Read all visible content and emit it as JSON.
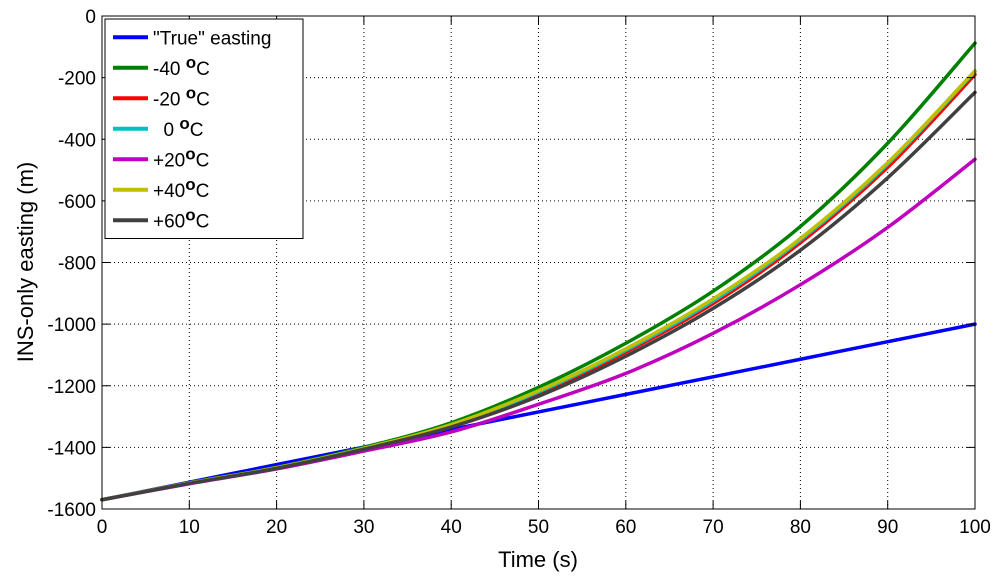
{
  "chart_data": {
    "type": "line",
    "title": "",
    "xlabel": "Time (s)",
    "ylabel": "INS-only easting (m)",
    "xlim": [
      0,
      100
    ],
    "ylim": [
      -1600,
      0
    ],
    "xticks": [
      0,
      10,
      20,
      30,
      40,
      50,
      60,
      70,
      80,
      90,
      100
    ],
    "yticks": [
      0,
      -200,
      -400,
      -600,
      -800,
      -1000,
      -1200,
      -1400,
      -1600
    ],
    "grid": true,
    "legend_position": "top-left",
    "x": [
      0,
      10,
      20,
      30,
      40,
      50,
      60,
      70,
      80,
      90,
      100
    ],
    "series": [
      {
        "name": "\"True\" easting",
        "label": "\"True\" easting",
        "sup": "",
        "unit": "",
        "color": "#0000ff",
        "values": [
          -1570,
          -1513,
          -1456,
          -1399,
          -1342,
          -1285,
          -1228,
          -1171,
          -1114,
          -1057,
          -1000
        ]
      },
      {
        "name": "-40 oC",
        "label": "-40 ",
        "sup": "o",
        "unit": "C",
        "color": "#008000",
        "values": [
          -1570,
          -1515,
          -1465,
          -1400,
          -1320,
          -1205,
          -1062,
          -893,
          -683,
          -413,
          -88
        ]
      },
      {
        "name": "-20 oC",
        "label": "-20 ",
        "sup": "o",
        "unit": "C",
        "color": "#ff0000",
        "values": [
          -1570,
          -1516,
          -1467,
          -1404,
          -1330,
          -1225,
          -1091,
          -933,
          -736,
          -491,
          -190
        ]
      },
      {
        "name": "0 oC",
        "label": "  0 ",
        "sup": "o",
        "unit": "C",
        "color": "#00c0c0",
        "values": [
          -1570,
          -1516,
          -1466,
          -1403,
          -1328,
          -1220,
          -1085,
          -925,
          -727,
          -481,
          -180
        ]
      },
      {
        "name": "+20oC",
        "label": "+20",
        "sup": "o",
        "unit": "C",
        "color": "#bf00bf",
        "values": [
          -1570,
          -1518,
          -1470,
          -1412,
          -1350,
          -1260,
          -1160,
          -1030,
          -872,
          -686,
          -465
        ]
      },
      {
        "name": "+40oC",
        "label": "+40",
        "sup": "o",
        "unit": "C",
        "color": "#bfbf00",
        "values": [
          -1570,
          -1516,
          -1466,
          -1403,
          -1326,
          -1216,
          -1080,
          -918,
          -722,
          -476,
          -178
        ]
      },
      {
        "name": "+60oC",
        "label": "+60",
        "sup": "o",
        "unit": "C",
        "color": "#404040",
        "values": [
          -1570,
          -1517,
          -1468,
          -1406,
          -1334,
          -1234,
          -1104,
          -949,
          -760,
          -525,
          -248
        ]
      }
    ]
  }
}
